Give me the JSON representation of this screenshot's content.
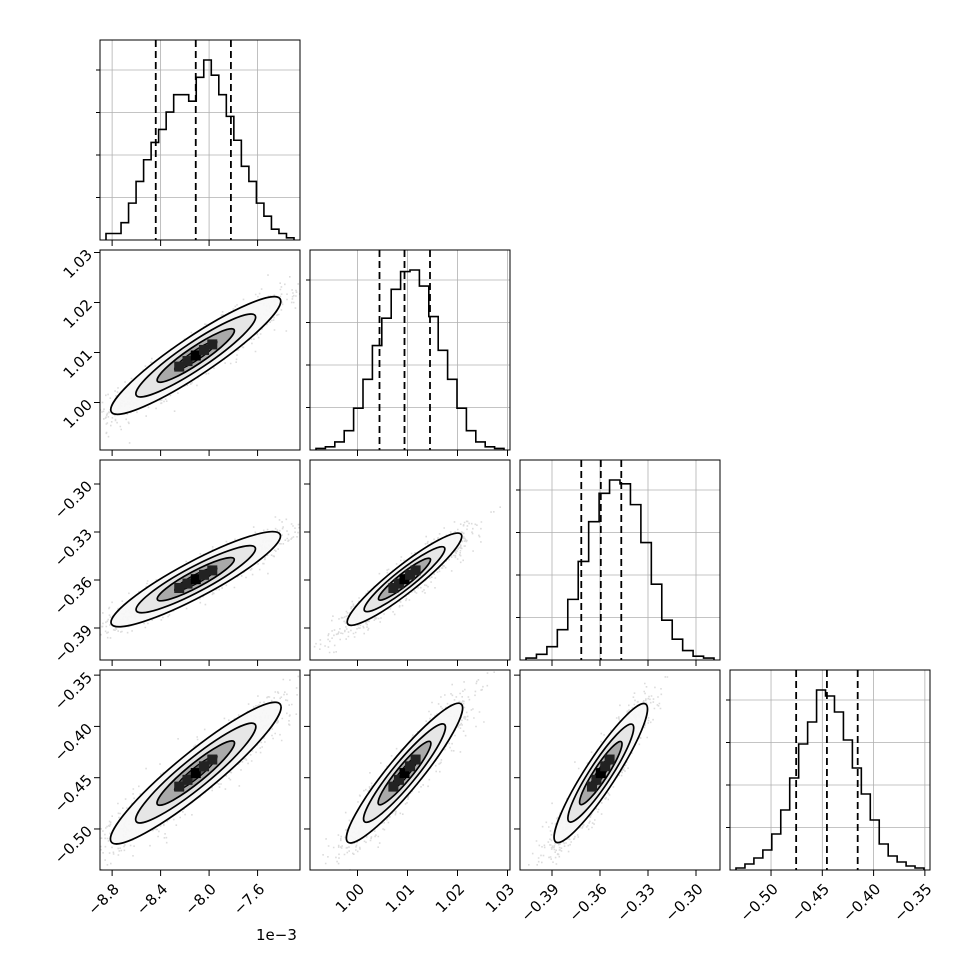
{
  "chart_data": {
    "type": "corner",
    "parameters": [
      {
        "index": 0,
        "scale_note": "1e−3",
        "range": [
          -8.9,
          -7.25
        ],
        "ticks": [
          "−8.8",
          "−8.4",
          "−8.0",
          "−7.6"
        ],
        "tick_values": [
          -8.8,
          -8.4,
          -8.0,
          -7.6
        ],
        "quantiles": [
          -8.44,
          -8.11,
          -7.82
        ]
      },
      {
        "index": 1,
        "range": [
          0.9905,
          1.0305
        ],
        "ticks": [
          "1.00",
          "1.01",
          "1.02",
          "1.03"
        ],
        "tick_values": [
          1.0,
          1.01,
          1.02,
          1.03
        ],
        "quantiles": [
          1.0044,
          1.0094,
          1.0145
        ]
      },
      {
        "index": 2,
        "range": [
          -0.41,
          -0.285
        ],
        "ticks": [
          "−0.39",
          "−0.36",
          "−0.33",
          "−0.30"
        ],
        "tick_values": [
          -0.39,
          -0.36,
          -0.33,
          -0.3
        ],
        "quantiles": [
          -0.3717,
          -0.3595,
          -0.3467
        ]
      },
      {
        "index": 3,
        "range": [
          -0.54,
          -0.345
        ],
        "ticks": [
          "−0.50",
          "−0.45",
          "−0.40",
          "−0.35"
        ],
        "tick_values": [
          -0.5,
          -0.45,
          -0.4,
          -0.35
        ],
        "quantiles": [
          -0.4755,
          -0.4455,
          -0.4155
        ]
      }
    ],
    "left_tick_params": [
      1,
      2,
      3
    ],
    "bottom_tick_params": [
      0,
      1,
      2,
      3
    ],
    "histograms": [
      [
        3,
        3,
        8,
        17,
        27,
        37,
        45,
        51,
        59,
        67,
        67,
        64,
        75,
        83,
        76,
        67,
        57,
        46,
        34,
        27,
        17,
        11,
        5,
        3,
        1
      ],
      [
        1,
        2,
        5,
        12,
        26,
        44,
        65,
        82,
        100,
        111,
        112,
        102,
        83,
        62,
        44,
        26,
        12,
        5,
        2,
        1
      ],
      [
        1,
        3,
        7,
        16,
        32,
        52,
        73,
        88,
        95,
        93,
        82,
        62,
        40,
        21,
        11,
        5,
        2,
        1
      ],
      [
        1,
        3,
        6,
        10,
        18,
        30,
        46,
        63,
        74,
        90,
        87,
        79,
        65,
        51,
        38,
        25,
        13,
        7,
        4,
        2,
        1
      ]
    ],
    "grid": true,
    "contour_fill_levels": [
      "#f7f7f7",
      "#e6e6e6",
      "#a9a9a9",
      "#555555",
      "#111111"
    ]
  }
}
